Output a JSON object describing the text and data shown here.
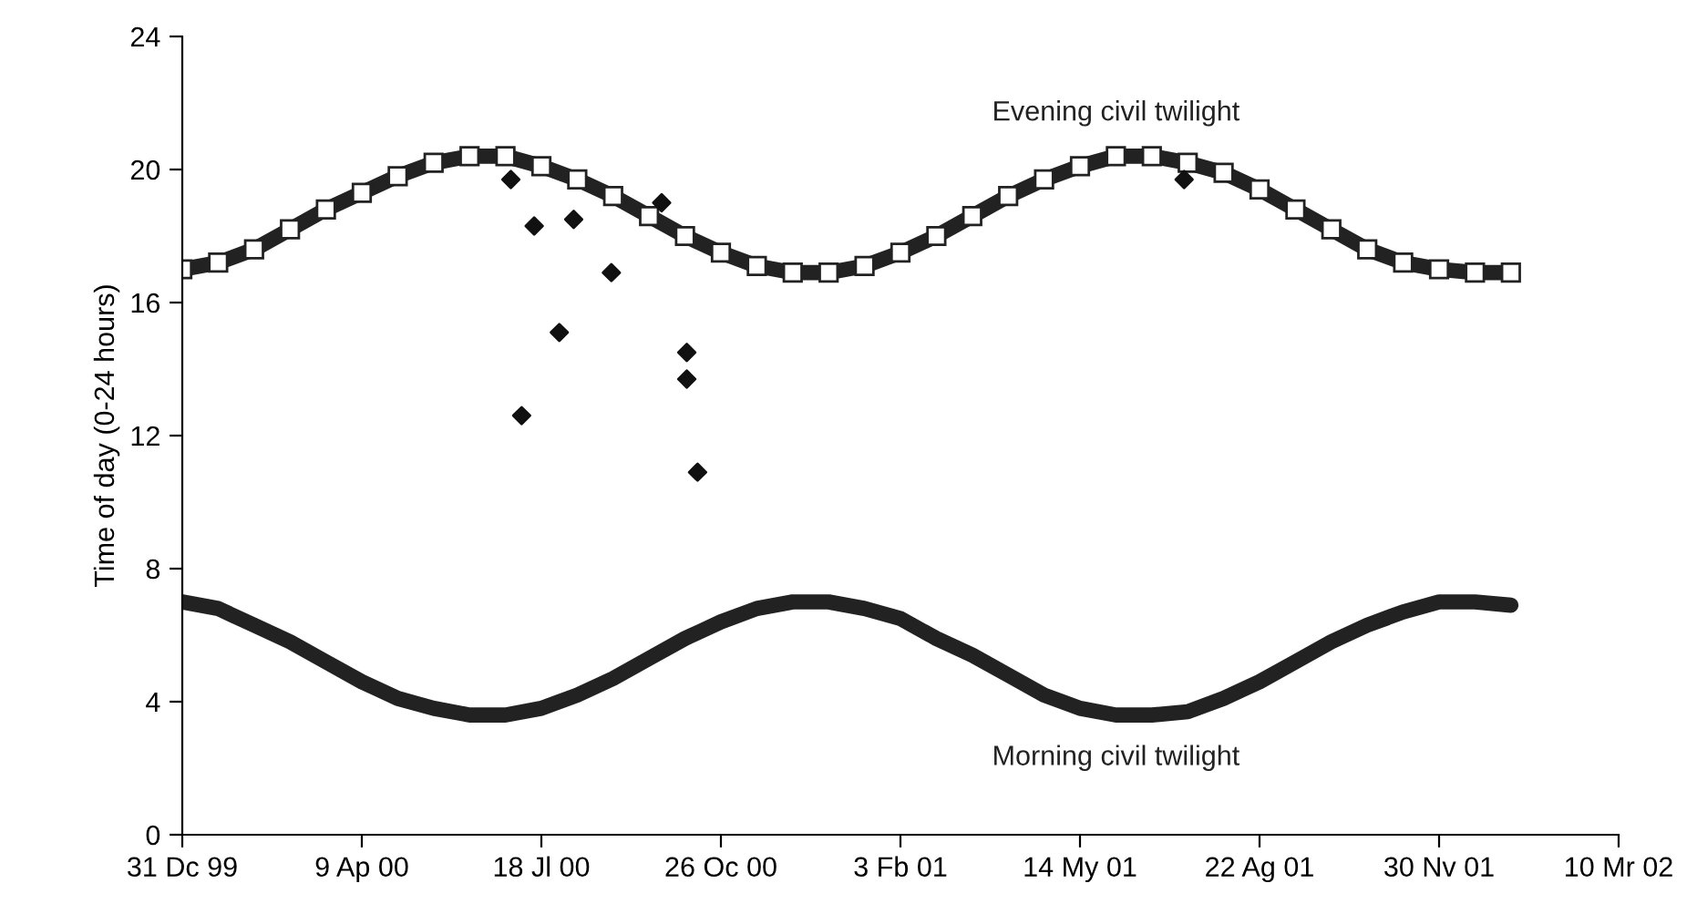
{
  "chart_data": {
    "type": "line",
    "ylabel": "Time of day (0-24 hours)",
    "xlim": [
      "1999-12-31",
      "2002-03-10"
    ],
    "xticks": [
      {
        "value": "1999-12-31",
        "label": "31 Dc 99"
      },
      {
        "value": "2000-04-09",
        "label": "9 Ap 00"
      },
      {
        "value": "2000-07-18",
        "label": "18 Jl 00"
      },
      {
        "value": "2000-10-26",
        "label": "26 Oc 00"
      },
      {
        "value": "2001-02-03",
        "label": "3 Fb 01"
      },
      {
        "value": "2001-05-14",
        "label": "14 My 01"
      },
      {
        "value": "2001-08-22",
        "label": "22 Ag 01"
      },
      {
        "value": "2001-11-30",
        "label": "30 Nv 01"
      },
      {
        "value": "2002-03-10",
        "label": "10 Mr 02"
      }
    ],
    "ylim": [
      0,
      24
    ],
    "yticks": [
      0,
      4,
      8,
      12,
      16,
      20,
      24
    ],
    "grid": false,
    "legend": false,
    "x": [
      "1999-12-31",
      "2000-01-20",
      "2000-02-09",
      "2000-02-29",
      "2000-03-20",
      "2000-04-09",
      "2000-04-29",
      "2000-05-19",
      "2000-06-08",
      "2000-06-28",
      "2000-07-18",
      "2000-08-07",
      "2000-08-27",
      "2000-09-16",
      "2000-10-06",
      "2000-10-26",
      "2000-11-15",
      "2000-12-05",
      "2000-12-25",
      "2001-01-14",
      "2001-02-03",
      "2001-02-23",
      "2001-03-15",
      "2001-04-04",
      "2001-04-24",
      "2001-05-14",
      "2001-06-03",
      "2001-06-23",
      "2001-07-13",
      "2001-08-02",
      "2001-08-22",
      "2001-09-11",
      "2001-10-01",
      "2001-10-21",
      "2001-11-10",
      "2001-11-30",
      "2001-12-20",
      "2002-01-09"
    ],
    "series": [
      {
        "name": "Evening civil twilight",
        "color": "#222222",
        "marker": "square",
        "values": [
          17.0,
          17.2,
          17.6,
          18.2,
          18.8,
          19.3,
          19.8,
          20.2,
          20.4,
          20.4,
          20.1,
          19.7,
          19.2,
          18.6,
          18.0,
          17.5,
          17.1,
          16.9,
          16.9,
          17.1,
          17.5,
          18.0,
          18.6,
          19.2,
          19.7,
          20.1,
          20.4,
          20.4,
          20.2,
          19.9,
          19.4,
          18.8,
          18.2,
          17.6,
          17.2,
          17.0,
          16.9,
          16.9
        ]
      },
      {
        "name": "Morning civil twilight",
        "color": "#222222",
        "marker": "none",
        "values": [
          7.0,
          6.8,
          6.3,
          5.8,
          5.2,
          4.6,
          4.1,
          3.8,
          3.6,
          3.6,
          3.8,
          4.2,
          4.7,
          5.3,
          5.9,
          6.4,
          6.8,
          7.0,
          7.0,
          6.8,
          6.5,
          5.9,
          5.4,
          4.8,
          4.2,
          3.8,
          3.6,
          3.6,
          3.7,
          4.1,
          4.6,
          5.2,
          5.8,
          6.3,
          6.7,
          7.0,
          7.0,
          6.9
        ]
      },
      {
        "type": "scatter",
        "color": "#111111",
        "marker": "diamond",
        "x": [
          "2000-07-01",
          "2000-07-14",
          "2000-07-07",
          "2000-07-28",
          "2000-08-05",
          "2000-08-26",
          "2000-09-23",
          "2000-10-07",
          "2000-10-07",
          "2000-10-13",
          "2001-07-11"
        ],
        "values": [
          19.7,
          18.3,
          12.6,
          15.1,
          18.5,
          16.9,
          19.0,
          14.5,
          13.7,
          10.9,
          19.7
        ]
      }
    ]
  }
}
